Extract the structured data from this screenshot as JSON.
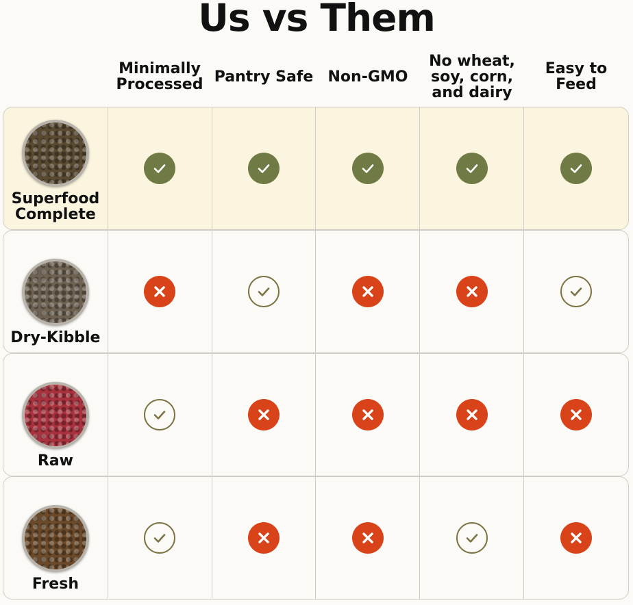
{
  "title": "Us vs Them",
  "columns": [
    "Minimally Processed",
    "Pantry Safe",
    "Non-GMO",
    "No wheat, soy, corn, and dairy",
    "Easy to Feed"
  ],
  "colors": {
    "highlight": "#fbf5df",
    "check_fill": "#707a45",
    "check_outline": "#7d7446",
    "cross": "#d9431a"
  },
  "rows": [
    {
      "name": "Superfood Complete",
      "highlight": true,
      "bowl": "#5a4a32",
      "values": [
        "check-filled",
        "check-filled",
        "check-filled",
        "check-filled",
        "check-filled"
      ]
    },
    {
      "name": "Dry-Kibble",
      "highlight": false,
      "bowl": "#6e6252",
      "values": [
        "cross",
        "check-outline",
        "cross",
        "cross",
        "check-outline"
      ]
    },
    {
      "name": "Raw",
      "highlight": false,
      "bowl": "#a8323e",
      "values": [
        "check-outline",
        "cross",
        "cross",
        "cross",
        "cross"
      ]
    },
    {
      "name": "Fresh",
      "highlight": false,
      "bowl": "#6a4a2a",
      "values": [
        "check-outline",
        "cross",
        "cross",
        "check-outline",
        "cross"
      ]
    }
  ]
}
